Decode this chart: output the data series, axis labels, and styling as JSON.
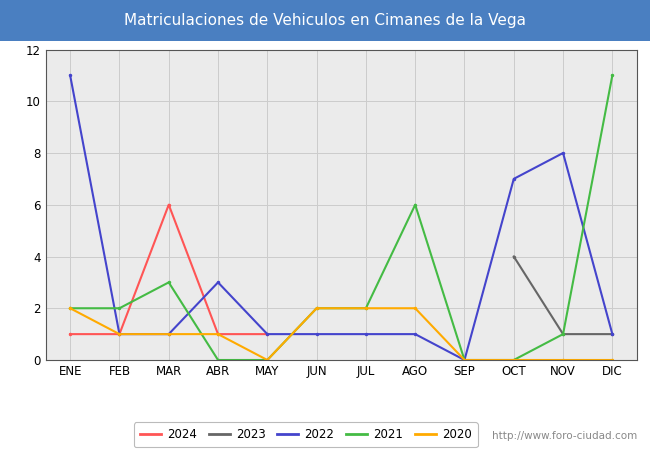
{
  "title": "Matriculaciones de Vehiculos en Cimanes de la Vega",
  "title_color": "#ffffff",
  "title_bg_color": "#4a7fc1",
  "months": [
    "ENE",
    "FEB",
    "MAR",
    "ABR",
    "MAY",
    "JUN",
    "JUL",
    "AGO",
    "SEP",
    "OCT",
    "NOV",
    "DIC"
  ],
  "series": {
    "2024": {
      "values": [
        1,
        1,
        6,
        1,
        1,
        null,
        null,
        null,
        null,
        null,
        null,
        null
      ],
      "color": "#ff5555",
      "linewidth": 1.5
    },
    "2023": {
      "values": [
        null,
        null,
        null,
        null,
        null,
        null,
        null,
        null,
        null,
        4,
        1,
        1
      ],
      "color": "#666666",
      "linewidth": 1.5
    },
    "2022": {
      "values": [
        11,
        1,
        1,
        3,
        1,
        1,
        1,
        1,
        0,
        7,
        8,
        1
      ],
      "color": "#4444cc",
      "linewidth": 1.5
    },
    "2021": {
      "values": [
        2,
        2,
        3,
        0,
        0,
        2,
        2,
        6,
        0,
        0,
        1,
        11
      ],
      "color": "#44bb44",
      "linewidth": 1.5
    },
    "2020": {
      "values": [
        2,
        1,
        1,
        1,
        0,
        2,
        2,
        2,
        0,
        0,
        0,
        0
      ],
      "color": "#ffaa00",
      "linewidth": 1.5
    }
  },
  "ylim": [
    0,
    12
  ],
  "yticks": [
    0,
    2,
    4,
    6,
    8,
    10,
    12
  ],
  "grid_color": "#cccccc",
  "plot_bg_color": "#ebebeb",
  "bg_color": "#ffffff",
  "watermark": "http://www.foro-ciudad.com",
  "legend_years": [
    "2024",
    "2023",
    "2022",
    "2021",
    "2020"
  ],
  "legend_colors": [
    "#ff5555",
    "#666666",
    "#4444cc",
    "#44bb44",
    "#ffaa00"
  ],
  "title_fontsize": 11,
  "tick_fontsize": 8.5,
  "legend_fontsize": 8.5,
  "watermark_fontsize": 7.5
}
